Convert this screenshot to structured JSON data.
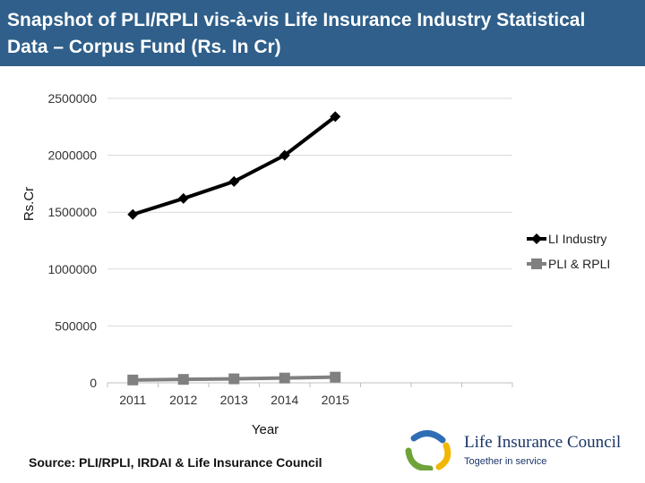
{
  "header": {
    "title_line1": "Snapshot of PLI/RPLI vis-à-vis Life Insurance Industry Statistical",
    "title_line2": "Data – Corpus Fund (Rs. In Cr)"
  },
  "chart_data": {
    "type": "line",
    "title": "Snapshot of PLI/RPLI vis-à-vis Life Insurance Industry Statistical Data – Corpus Fund (Rs. In Cr)",
    "xlabel": "Year",
    "ylabel": "Rs.Cr",
    "categories": [
      "2011",
      "2012",
      "2013",
      "2014",
      "2015"
    ],
    "y_ticks": [
      0,
      500000,
      1000000,
      1500000,
      2000000,
      2500000
    ],
    "y_tick_labels": [
      "0",
      "500000",
      "1000000",
      "1500000",
      "2000000",
      "2500000"
    ],
    "ylim": [
      0,
      2500000
    ],
    "grid": true,
    "legend_position": "right",
    "series": [
      {
        "name": "LI Industry",
        "values": [
          1480000,
          1620000,
          1770000,
          2000000,
          2340000
        ],
        "color": "#000000",
        "marker": "diamond"
      },
      {
        "name": "PLI & RPLI",
        "values": [
          25000,
          30000,
          35000,
          42000,
          50000
        ],
        "color": "#808080",
        "marker": "square"
      }
    ]
  },
  "footer": {
    "source": "Source: PLI/RPLI, IRDAI & Life Insurance Council",
    "logo_name": "Life Insurance Council",
    "logo_tagline": "Together in service"
  }
}
